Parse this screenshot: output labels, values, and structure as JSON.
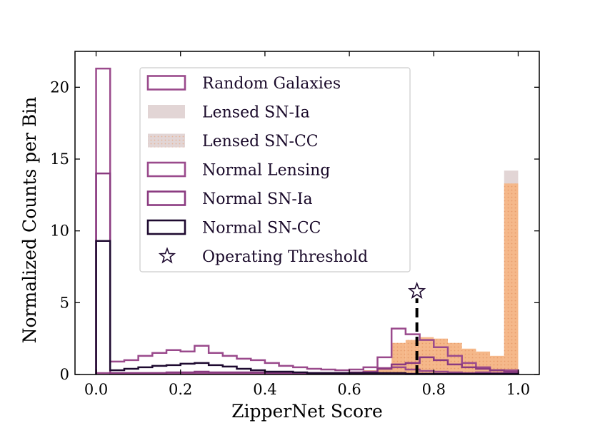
{
  "chart_data": {
    "type": "histogram",
    "title": "",
    "xlabel": "ZipperNet Score",
    "ylabel": "Normalized Counts per Bin",
    "xlim": [
      -0.05,
      1.05
    ],
    "ylim": [
      0,
      22.5
    ],
    "xticks": [
      "0.0",
      "0.2",
      "0.4",
      "0.6",
      "0.8",
      "1.0"
    ],
    "yticks": [
      "0",
      "5",
      "10",
      "15",
      "20"
    ],
    "bin_edges": [
      0.0,
      0.0333,
      0.0667,
      0.1,
      0.1333,
      0.1667,
      0.2,
      0.2333,
      0.2667,
      0.3,
      0.3333,
      0.3667,
      0.4,
      0.4333,
      0.4667,
      0.5,
      0.5333,
      0.5667,
      0.6,
      0.6333,
      0.6667,
      0.7,
      0.7333,
      0.7667,
      0.8,
      0.8333,
      0.8667,
      0.9,
      0.9333,
      0.9667,
      1.0
    ],
    "legend_position": "upper-left",
    "series": [
      {
        "name": "Random Galaxies",
        "style": "step",
        "color": "#9a4a8c",
        "width": 2.5,
        "values": [
          0.1,
          0.9,
          1.0,
          1.3,
          1.5,
          1.7,
          1.6,
          2.0,
          1.5,
          1.3,
          1.1,
          1.0,
          0.8,
          0.6,
          0.5,
          0.4,
          0.35,
          0.3,
          0.35,
          0.5,
          0.45,
          0.5,
          0.35,
          0.25,
          0.2,
          0.15,
          0.1,
          0.15,
          0.1,
          0.1
        ]
      },
      {
        "name": "Lensed SN-Ia",
        "style": "filled",
        "color": "#e2d5d5",
        "values": [
          0,
          0,
          0,
          0,
          0,
          0,
          0,
          0,
          0,
          0,
          0,
          0,
          0,
          0,
          0,
          0,
          0,
          0,
          0,
          0,
          0.2,
          0.6,
          1.2,
          1.5,
          1.2,
          0.8,
          0.5,
          0.4,
          0.5,
          14.2
        ]
      },
      {
        "name": "Lensed SN-CC",
        "style": "filled",
        "color": "#f5b88a",
        "values": [
          0,
          0.05,
          0.05,
          0.05,
          0.05,
          0.05,
          0.05,
          0.05,
          0.1,
          0.1,
          0.1,
          0.1,
          0.1,
          0.1,
          0.1,
          0.1,
          0.1,
          0.15,
          0.2,
          0.3,
          0.5,
          2.2,
          2.4,
          2.6,
          2.5,
          2.2,
          1.8,
          1.6,
          1.3,
          13.3
        ]
      },
      {
        "name": "Normal Lensing",
        "style": "step",
        "color": "#9a4a8c",
        "width": 2.5,
        "values": [
          21.3,
          0.1,
          0.1,
          0.1,
          0.1,
          0.1,
          0.1,
          0.1,
          0.1,
          0.1,
          0.1,
          0.1,
          0.1,
          0.1,
          0.1,
          0.1,
          0.1,
          0.1,
          0.15,
          0.2,
          1.2,
          3.2,
          2.8,
          2.4,
          1.9,
          1.3,
          0.8,
          0.5,
          0.3,
          0.3
        ]
      },
      {
        "name": "Normal SN-Ia",
        "style": "step",
        "color": "#8a3a80",
        "width": 2.5,
        "values": [
          14.0,
          0.1,
          0.1,
          0.1,
          0.1,
          0.15,
          0.15,
          0.2,
          0.15,
          0.15,
          0.15,
          0.15,
          0.1,
          0.1,
          0.1,
          0.1,
          0.1,
          0.1,
          0.1,
          0.15,
          0.4,
          0.7,
          0.8,
          1.2,
          1.0,
          0.7,
          0.5,
          0.4,
          0.3,
          0.2
        ]
      },
      {
        "name": "Normal SN-CC",
        "style": "step",
        "color": "#1e0a30",
        "width": 2.5,
        "values": [
          9.3,
          0.3,
          0.4,
          0.5,
          0.6,
          0.65,
          0.75,
          0.8,
          0.65,
          0.55,
          0.4,
          0.3,
          0.2,
          0.2,
          0.15,
          0.1,
          0.1,
          0.1,
          0.1,
          0.1,
          0.1,
          0.1,
          0.05,
          0.05,
          0.05,
          0.05,
          0.05,
          0.05,
          0.05,
          0.05
        ]
      }
    ],
    "threshold": {
      "name": "Operating Threshold",
      "x": 0.76,
      "y": 5.8,
      "color": "#000000",
      "linestyle": "dashed"
    }
  }
}
